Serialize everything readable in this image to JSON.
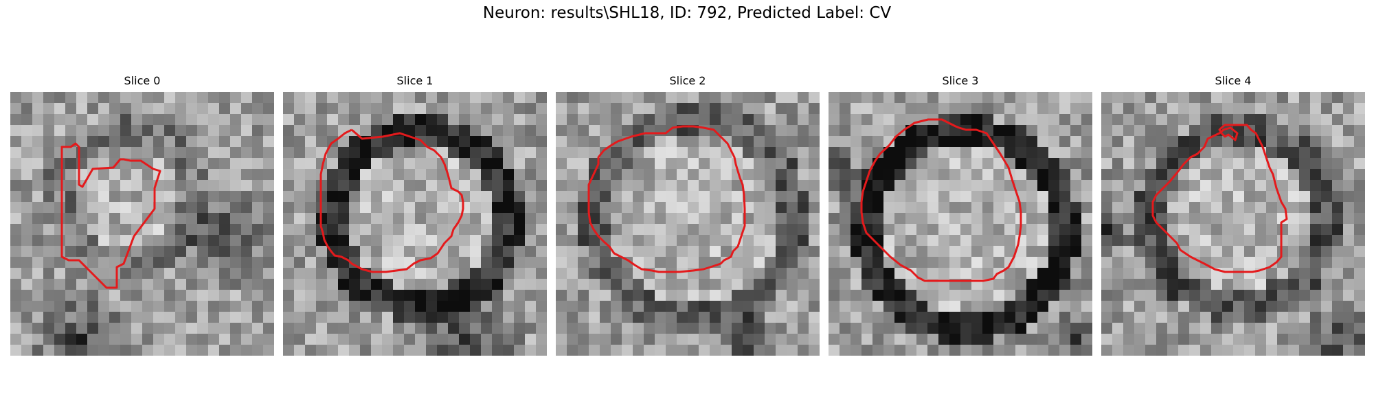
{
  "figure": {
    "title": "Neuron: results\\SHL18, ID: 792, Predicted Label: CV"
  },
  "contour_color": "#e41a1c",
  "panels": [
    {
      "title": "Slice 0"
    },
    {
      "title": "Slice 1"
    },
    {
      "title": "Slice 2"
    },
    {
      "title": "Slice 3"
    },
    {
      "title": "Slice 4"
    }
  ]
}
